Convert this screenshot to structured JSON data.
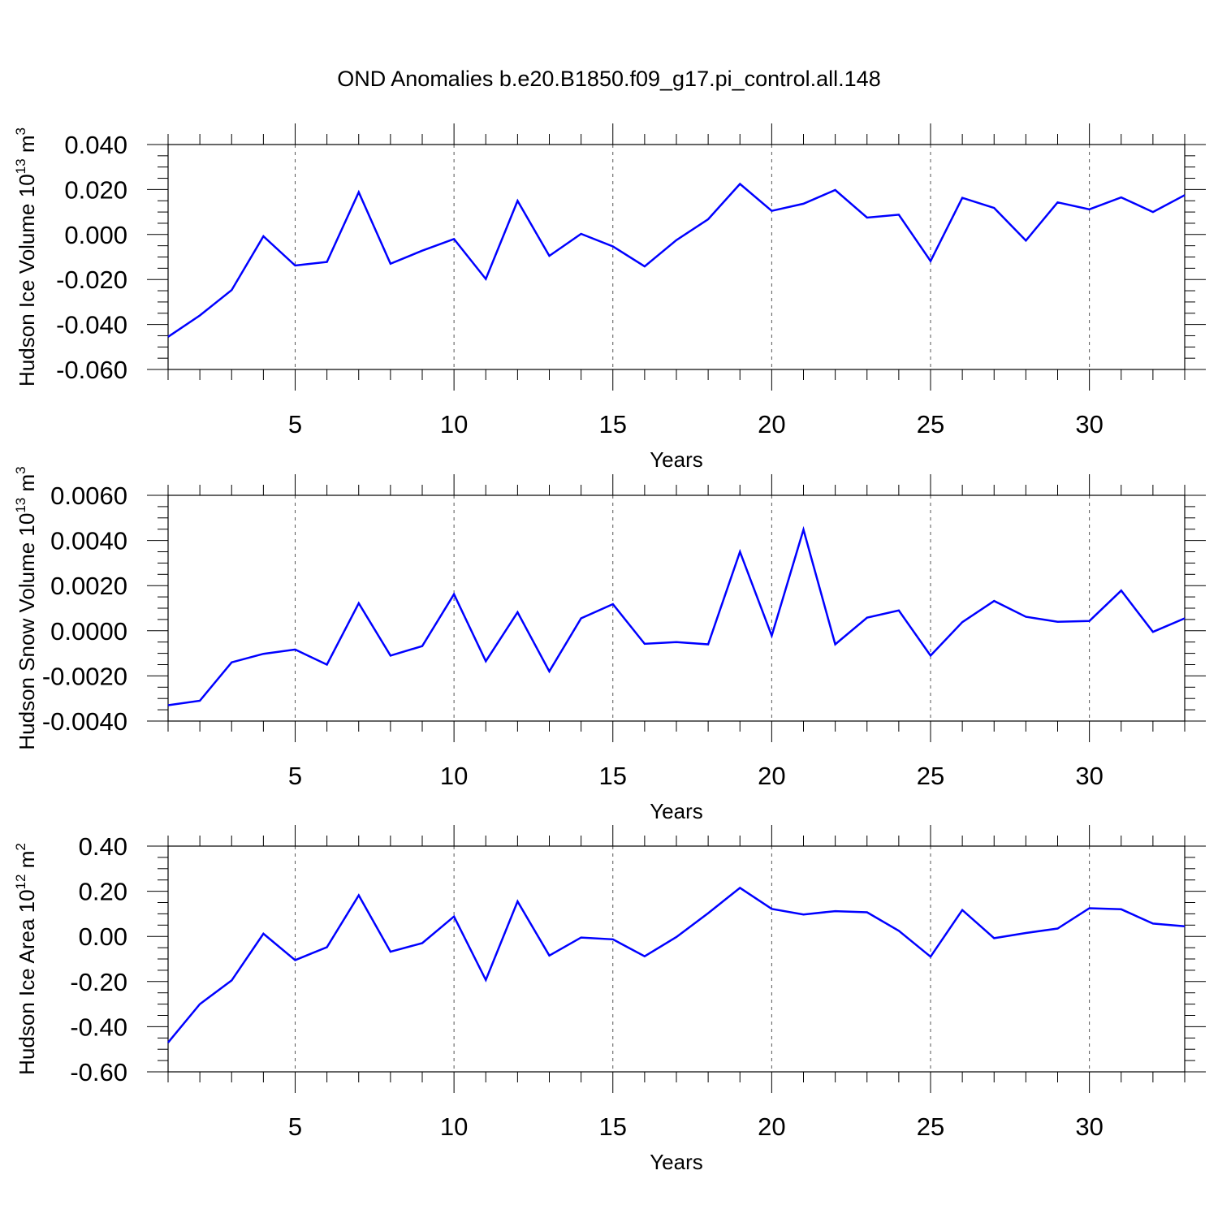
{
  "title": "OND Anomalies b.e20.B1850.f09_g17.pi_control.all.148",
  "colors": {
    "series": "#0000ff",
    "axes": "#000000",
    "grid": "#555555"
  },
  "chart_data": [
    {
      "type": "line",
      "title": "OND Anomalies b.e20.B1850.f09_g17.pi_control.all.148",
      "xlabel": "Years",
      "ylabel": "Hudson Ice Volume 10",
      "ylabel_sup": "13",
      "ylabel_unit": "m",
      "ylabel_unit_sup": "3",
      "xlim": [
        1,
        33
      ],
      "ylim": [
        -0.06,
        0.04
      ],
      "yticks": [
        "0.040",
        "0.020",
        "0.000",
        "-0.020",
        "-0.040",
        "-0.060"
      ],
      "ytick_values": [
        0.04,
        0.02,
        0.0,
        -0.02,
        -0.04,
        -0.06
      ],
      "xticks": [
        "5",
        "10",
        "15",
        "20",
        "25",
        "30"
      ],
      "xtick_values": [
        5,
        10,
        15,
        20,
        25,
        30
      ],
      "x": [
        1,
        2,
        3,
        4,
        5,
        6,
        7,
        8,
        9,
        10,
        11,
        12,
        13,
        14,
        15,
        16,
        17,
        18,
        19,
        20,
        21,
        22,
        23,
        24,
        25,
        26,
        27,
        28,
        29,
        30,
        31,
        32,
        33
      ],
      "values": [
        -0.0455,
        -0.036,
        -0.0247,
        -0.0008,
        -0.0138,
        -0.0122,
        0.0188,
        -0.013,
        -0.0072,
        -0.002,
        -0.0198,
        0.015,
        -0.0095,
        0.0003,
        -0.0053,
        -0.0142,
        -0.0025,
        0.0068,
        0.0225,
        0.0105,
        0.0137,
        0.0198,
        0.0075,
        0.0088,
        -0.0118,
        0.0163,
        0.0118,
        -0.0027,
        0.0143,
        0.0112,
        0.0165,
        0.01,
        0.0175
      ]
    },
    {
      "type": "line",
      "xlabel": "Years",
      "ylabel": "Hudson Snow Volume 10",
      "ylabel_sup": "13",
      "ylabel_unit": "m",
      "ylabel_unit_sup": "3",
      "xlim": [
        1,
        33
      ],
      "ylim": [
        -0.004,
        0.006
      ],
      "yticks": [
        "0.0060",
        "0.0040",
        "0.0020",
        "0.0000",
        "-0.0020",
        "-0.0040"
      ],
      "ytick_values": [
        0.006,
        0.004,
        0.002,
        0.0,
        -0.002,
        -0.004
      ],
      "xticks": [
        "5",
        "10",
        "15",
        "20",
        "25",
        "30"
      ],
      "xtick_values": [
        5,
        10,
        15,
        20,
        25,
        30
      ],
      "x": [
        1,
        2,
        3,
        4,
        5,
        6,
        7,
        8,
        9,
        10,
        11,
        12,
        13,
        14,
        15,
        16,
        17,
        18,
        19,
        20,
        21,
        22,
        23,
        24,
        25,
        26,
        27,
        28,
        29,
        30,
        31,
        32,
        33
      ],
      "values": [
        -0.0033,
        -0.0031,
        -0.0014,
        -0.00102,
        -0.00083,
        -0.0015,
        0.00122,
        -0.0011,
        -0.00068,
        0.00162,
        -0.00135,
        0.00082,
        -0.0018,
        0.00055,
        0.00118,
        -0.00058,
        -0.0005,
        -0.0006,
        0.0035,
        -0.00022,
        0.00448,
        -0.0006,
        0.00058,
        0.0009,
        -0.0011,
        0.00038,
        0.00132,
        0.00062,
        0.0004,
        0.00043,
        0.00178,
        -5e-05,
        0.00055
      ]
    },
    {
      "type": "line",
      "xlabel": "Years",
      "ylabel": "Hudson Ice Area 10",
      "ylabel_sup": "12",
      "ylabel_unit": "m",
      "ylabel_unit_sup": "2",
      "xlim": [
        1,
        33
      ],
      "ylim": [
        -0.6,
        0.4
      ],
      "yticks": [
        "0.40",
        "0.20",
        "0.00",
        "-0.20",
        "-0.40",
        "-0.60"
      ],
      "ytick_values": [
        0.4,
        0.2,
        0.0,
        -0.2,
        -0.4,
        -0.6
      ],
      "xticks": [
        "5",
        "10",
        "15",
        "20",
        "25",
        "30"
      ],
      "xtick_values": [
        5,
        10,
        15,
        20,
        25,
        30
      ],
      "x": [
        1,
        2,
        3,
        4,
        5,
        6,
        7,
        8,
        9,
        10,
        11,
        12,
        13,
        14,
        15,
        16,
        17,
        18,
        19,
        20,
        21,
        22,
        23,
        24,
        25,
        26,
        27,
        28,
        29,
        30,
        31,
        32,
        33
      ],
      "values": [
        -0.47,
        -0.3,
        -0.195,
        0.012,
        -0.105,
        -0.048,
        0.182,
        -0.068,
        -0.03,
        0.088,
        -0.193,
        0.155,
        -0.085,
        -0.005,
        -0.013,
        -0.088,
        -0.003,
        0.103,
        0.215,
        0.122,
        0.097,
        0.112,
        0.107,
        0.025,
        -0.09,
        0.117,
        -0.008,
        0.015,
        0.035,
        0.125,
        0.12,
        0.057,
        0.045
      ]
    }
  ]
}
